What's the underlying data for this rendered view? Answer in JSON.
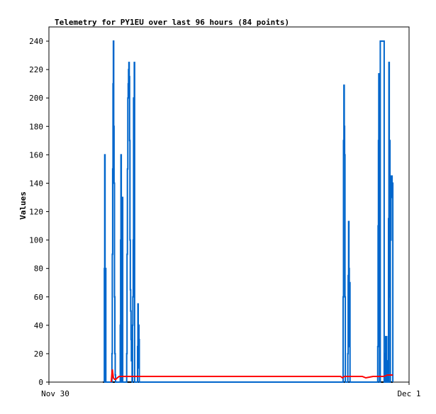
{
  "chart_data": {
    "type": "line",
    "title": "Telemetry for PY1EU over last 96 hours (84 points)",
    "ylabel": "Values",
    "xlabel": "",
    "ylim": [
      0,
      250
    ],
    "yticks": [
      0,
      20,
      40,
      60,
      80,
      100,
      120,
      140,
      160,
      180,
      200,
      220,
      240
    ],
    "xtick_labels": [
      "Nov 30",
      "Dec 1"
    ],
    "xlim": [
      0,
      100
    ],
    "grid": false,
    "legend": "none",
    "series": [
      {
        "color": "#0066cc",
        "x": [
          15.3,
          15.4,
          15.5,
          15.6,
          15.7,
          15.8,
          15.9,
          17.4,
          17.5,
          17.6,
          17.7,
          17.8,
          17.9,
          18.0,
          18.1,
          18.2,
          18.3,
          18.4,
          18.5,
          18.6,
          18.7,
          18.8,
          19.6,
          19.8,
          19.9,
          20.0,
          20.1,
          20.3,
          20.5,
          21.5,
          21.6,
          21.7,
          21.8,
          21.9,
          22.0,
          22.1,
          22.2,
          22.3,
          22.4,
          22.5,
          22.6,
          22.7,
          22.8,
          22.9,
          23.0,
          23.1,
          23.2,
          23.3,
          23.4,
          23.5,
          23.6,
          23.7,
          23.8,
          23.9,
          24.0,
          24.1,
          24.5,
          24.6,
          24.7,
          24.8,
          24.9,
          25.0,
          25.1,
          25.2,
          25.3,
          25.4,
          25.6,
          25.7,
          25.8,
          81.6,
          81.7,
          81.8,
          81.9,
          82.0,
          82.1,
          82.2,
          82.3,
          82.9,
          83.0,
          83.1,
          83.2,
          83.3,
          83.4,
          83.5,
          83.6,
          83.7,
          91.2,
          91.3,
          91.4,
          91.5,
          91.6,
          91.7,
          91.8,
          91.9,
          92.0,
          93.1,
          93.2,
          93.3,
          93.4,
          93.5,
          93.8,
          93.9,
          94.0,
          94.1,
          94.2,
          94.3,
          94.4,
          94.5,
          94.6,
          94.7,
          94.8,
          94.9,
          95.0,
          95.1,
          95.2,
          95.3,
          95.5
        ],
        "y": [
          0,
          80,
          160,
          0,
          80,
          0,
          0,
          0,
          20,
          90,
          150,
          210,
          240,
          180,
          140,
          60,
          20,
          5,
          0,
          0,
          0,
          0,
          0,
          40,
          100,
          160,
          0,
          130,
          0,
          0,
          20,
          90,
          150,
          200,
          210,
          220,
          225,
          215,
          170,
          100,
          65,
          50,
          30,
          15,
          30,
          0,
          40,
          60,
          100,
          200,
          170,
          225,
          0,
          0,
          0,
          0,
          0,
          25,
          55,
          10,
          40,
          30,
          0,
          0,
          0,
          0,
          0,
          0,
          0,
          0,
          60,
          170,
          209,
          180,
          160,
          60,
          0,
          0,
          20,
          75,
          113,
          80,
          25,
          70,
          0,
          0,
          0,
          25,
          110,
          170,
          217,
          120,
          0,
          0,
          240,
          0,
          0,
          0,
          20,
          32,
          0,
          15,
          0,
          0,
          0,
          115,
          225,
          60,
          170,
          0,
          145,
          100,
          145,
          130,
          145,
          140,
          0
        ],
        "step": true
      },
      {
        "color": "#ff0000",
        "x": [
          17.3,
          17.6,
          17.9,
          18.2,
          18.6,
          19.0,
          19.5,
          20.0,
          30,
          40,
          50,
          60,
          70,
          80,
          81.0,
          81.5,
          82.0,
          85,
          87,
          88,
          90,
          91,
          92,
          93,
          94,
          95.5
        ],
        "y": [
          0,
          9,
          3,
          2,
          2,
          3,
          4,
          4,
          4,
          4,
          4,
          4,
          4,
          4,
          4,
          3,
          4,
          4,
          4,
          3,
          4,
          4,
          4,
          4,
          5,
          5
        ],
        "step": false
      },
      {
        "color": "#000000",
        "x": [
          15,
          95.5
        ],
        "y": [
          0,
          0
        ],
        "step": false
      }
    ]
  }
}
